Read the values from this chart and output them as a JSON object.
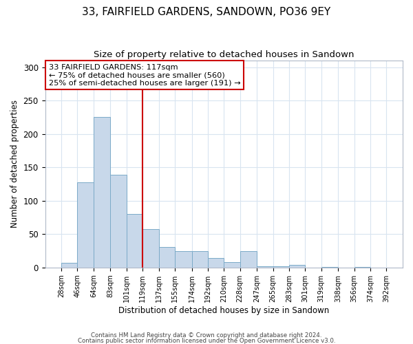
{
  "title": "33, FAIRFIELD GARDENS, SANDOWN, PO36 9EY",
  "subtitle": "Size of property relative to detached houses in Sandown",
  "xlabel": "Distribution of detached houses by size in Sandown",
  "ylabel": "Number of detached properties",
  "bin_edges": [
    28,
    46,
    64,
    83,
    101,
    119,
    137,
    155,
    174,
    192,
    210,
    228,
    247,
    265,
    283,
    301,
    319,
    338,
    356,
    374,
    392
  ],
  "bar_heights": [
    7,
    128,
    226,
    139,
    80,
    58,
    31,
    25,
    25,
    14,
    8,
    25,
    2,
    2,
    4,
    0,
    1,
    0,
    1,
    0
  ],
  "bar_color": "#c8d8ea",
  "bar_edge_color": "#7baac8",
  "vline_x": 119,
  "vline_color": "#cc0000",
  "ylim": [
    0,
    310
  ],
  "annotation_line1": "33 FAIRFIELD GARDENS: 117sqm",
  "annotation_line2": "← 75% of detached houses are smaller (560)",
  "annotation_line3": "25% of semi-detached houses are larger (191) →",
  "annotation_box_color": "#ffffff",
  "annotation_box_edge_color": "#cc0000",
  "footer_line1": "Contains HM Land Registry data © Crown copyright and database right 2024.",
  "footer_line2": "Contains public sector information licensed under the Open Government Licence v3.0.",
  "background_color": "#ffffff",
  "plot_bg_color": "#ffffff",
  "grid_color": "#d8e4f0",
  "title_fontsize": 11,
  "subtitle_fontsize": 9.5,
  "tick_labels": [
    "28sqm",
    "46sqm",
    "64sqm",
    "83sqm",
    "101sqm",
    "119sqm",
    "137sqm",
    "155sqm",
    "174sqm",
    "192sqm",
    "210sqm",
    "228sqm",
    "247sqm",
    "265sqm",
    "283sqm",
    "301sqm",
    "319sqm",
    "338sqm",
    "356sqm",
    "374sqm",
    "392sqm"
  ]
}
